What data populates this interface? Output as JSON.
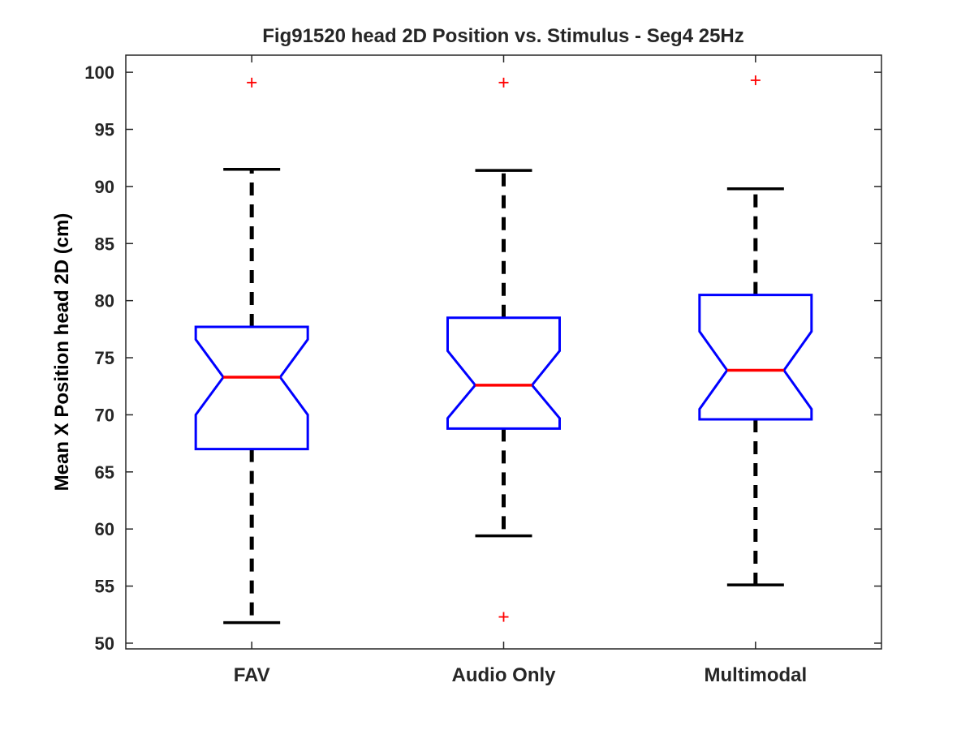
{
  "chart_data": {
    "type": "boxplot",
    "title": "Fig91520 head 2D Position vs. Stimulus - Seg4 25Hz",
    "xlabel": "",
    "ylabel": "Mean X Position head 2D (cm)",
    "ylim": [
      49.5,
      101.5
    ],
    "yticks": [
      50,
      55,
      60,
      65,
      70,
      75,
      80,
      85,
      90,
      95,
      100
    ],
    "notched": true,
    "categories": [
      "FAV",
      "Audio Only",
      "Multimodal"
    ],
    "boxes": [
      {
        "name": "FAV",
        "whisker_low": 51.8,
        "q1": 67.0,
        "notch_low": 70.0,
        "median": 73.3,
        "notch_high": 76.6,
        "q3": 77.7,
        "whisker_high": 91.5,
        "outliers": [
          99.1
        ]
      },
      {
        "name": "Audio Only",
        "whisker_low": 59.4,
        "q1": 68.8,
        "notch_low": 69.7,
        "median": 72.6,
        "notch_high": 75.6,
        "q3": 78.5,
        "whisker_high": 91.4,
        "outliers": [
          99.1,
          52.3
        ]
      },
      {
        "name": "Multimodal",
        "whisker_low": 55.1,
        "q1": 69.6,
        "notch_low": 70.5,
        "median": 73.9,
        "notch_high": 77.3,
        "q3": 80.5,
        "whisker_high": 89.8,
        "outliers": [
          99.3
        ]
      }
    ],
    "colors": {
      "box": "#0000ff",
      "median": "#ff0000",
      "whisker": "#000000",
      "outlier": "#ff0000",
      "axis": "#262626"
    }
  }
}
